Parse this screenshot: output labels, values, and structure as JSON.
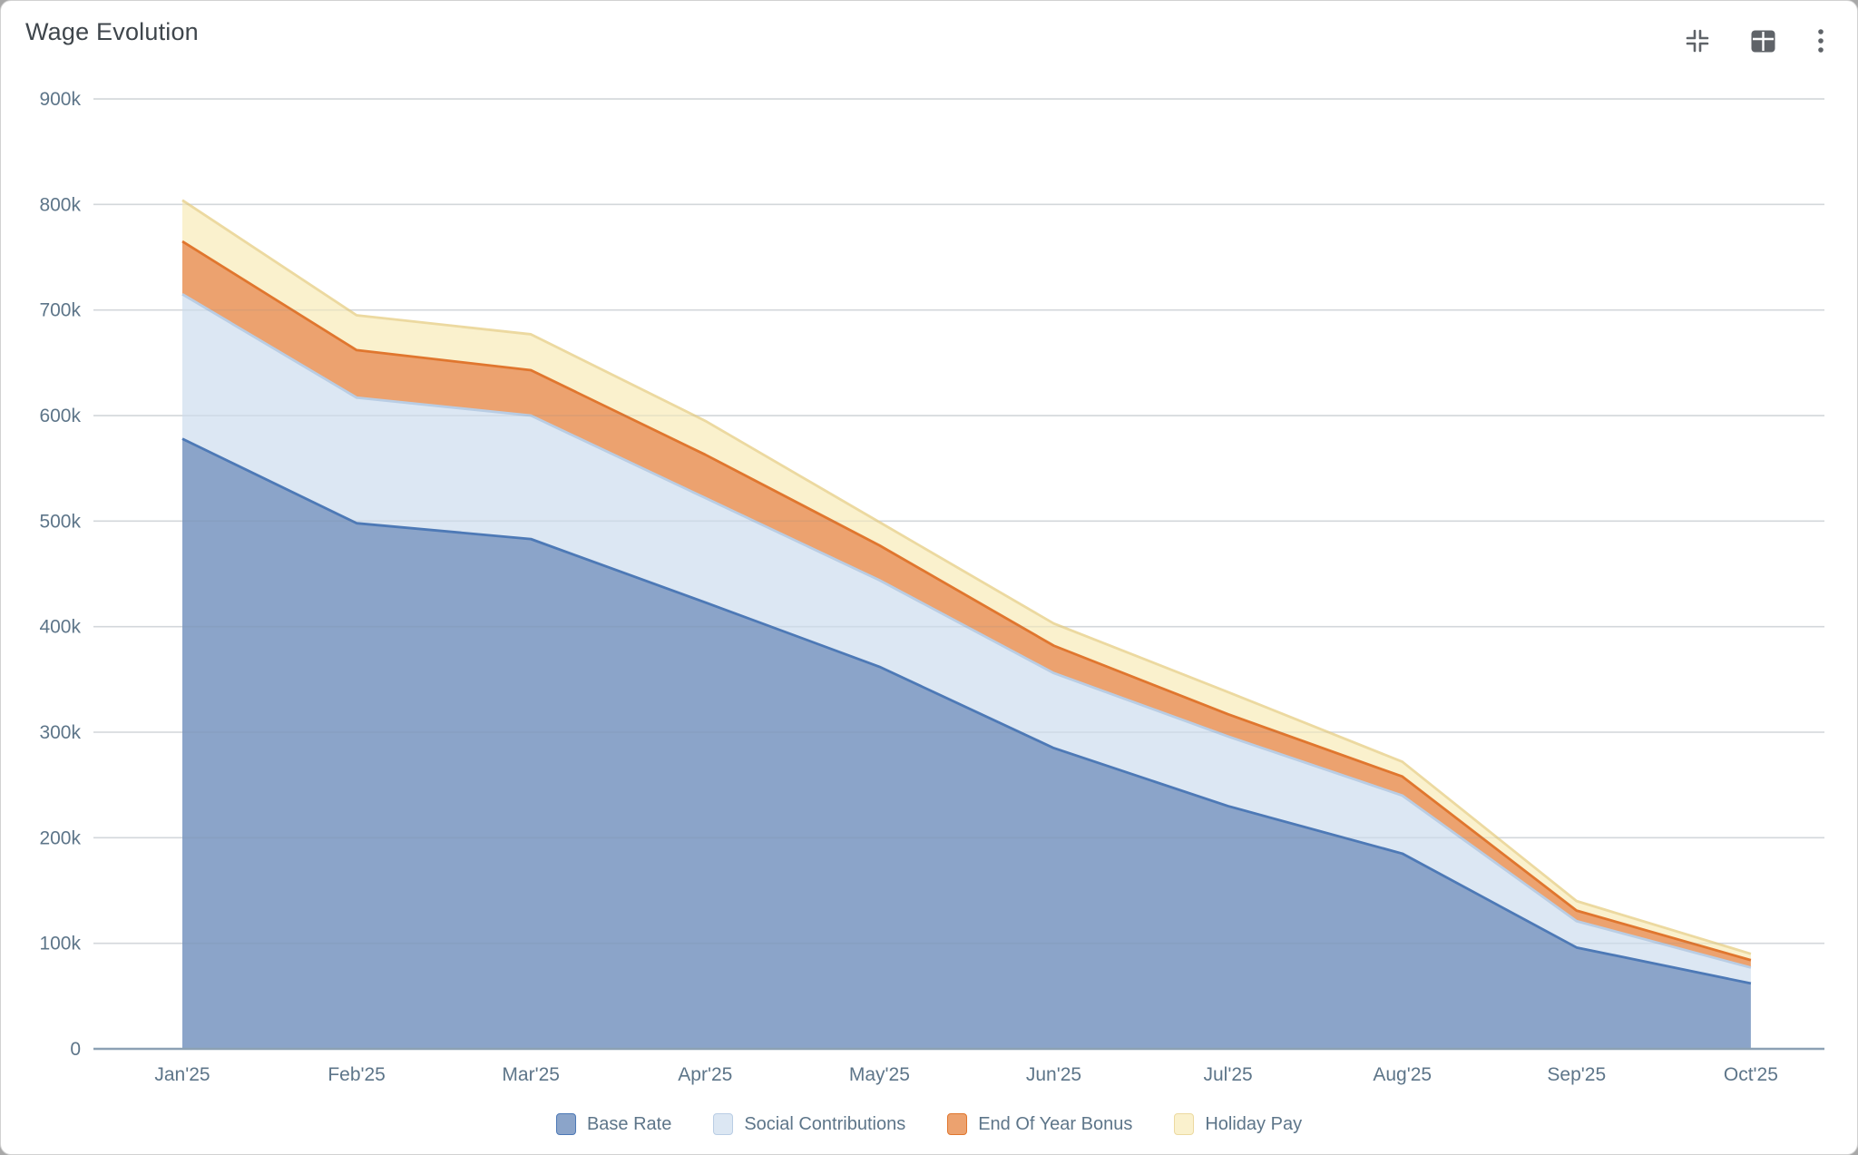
{
  "header": {
    "title": "Wage Evolution"
  },
  "toolbar": {
    "buttons": [
      {
        "icon": "exit-fullscreen-icon",
        "tooltip": ""
      },
      {
        "icon": "data-table-icon",
        "tooltip": ""
      },
      {
        "icon": "kebab-menu-icon",
        "tooltip": ""
      }
    ],
    "icon_color": "#5f6368"
  },
  "chart_data": {
    "type": "area",
    "stacked": true,
    "title": "Wage Evolution",
    "categories": [
      "Jan'25",
      "Feb'25",
      "Mar'25",
      "Apr'25",
      "May'25",
      "Jun'25",
      "Jul'25",
      "Aug'25",
      "Sep'25",
      "Oct'25"
    ],
    "values_unit": "thousands",
    "series": [
      {
        "name": "Base Rate",
        "fill": "#8ba4c9",
        "stroke": "#4d79b6",
        "values": [
          578,
          498,
          483,
          423,
          362,
          285,
          230,
          185,
          96,
          62
        ]
      },
      {
        "name": "Social Contributions",
        "fill": "#dce7f3",
        "stroke": "#b9cde4",
        "values": [
          137,
          119,
          117,
          99,
          82,
          71,
          66,
          55,
          25,
          15
        ]
      },
      {
        "name": "End Of Year Bonus",
        "fill": "#eca26f",
        "stroke": "#e0762e",
        "values": [
          50,
          45,
          43,
          41,
          33,
          26,
          21,
          18,
          10,
          7
        ]
      },
      {
        "name": "Holiday Pay",
        "fill": "#faf1cd",
        "stroke": "#ecd9a0",
        "values": [
          39,
          33,
          34,
          32,
          22,
          21,
          21,
          14,
          9,
          6
        ]
      }
    ],
    "ylim": [
      0,
      900000
    ],
    "yticks_k": [
      0,
      100,
      200,
      300,
      400,
      500,
      600,
      700,
      800,
      900
    ],
    "ytick_labels": [
      "0",
      "100k",
      "200k",
      "300k",
      "400k",
      "500k",
      "600k",
      "700k",
      "800k",
      "900k"
    ],
    "grid": "horizontal",
    "gridline_color": "#e2e4e6",
    "axis_line_color": "#8ca1b4",
    "tick_label_color": "#5d7589",
    "legend_position": "bottom"
  }
}
